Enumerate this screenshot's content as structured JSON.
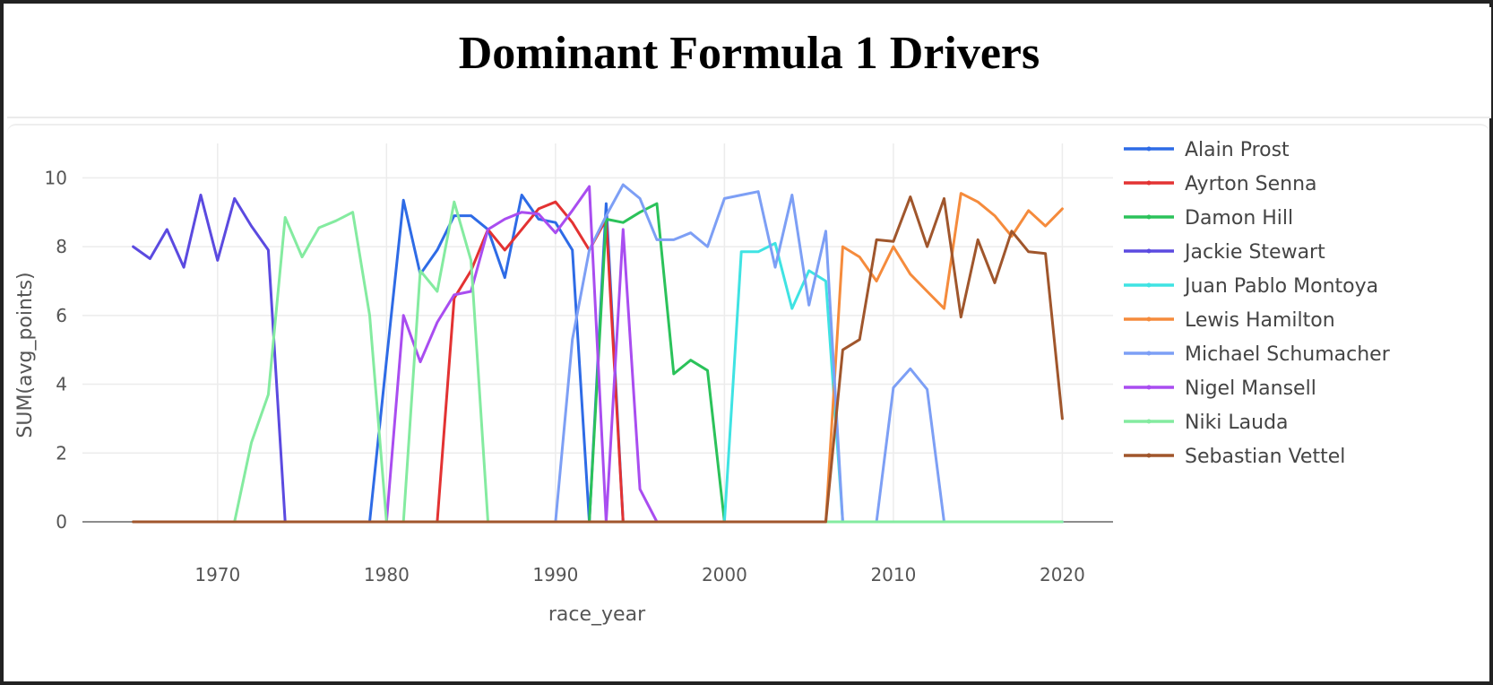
{
  "title": "Dominant Formula 1 Drivers",
  "chart_data": {
    "type": "line",
    "xlabel": "race_year",
    "ylabel": "SUM(avg_points)",
    "xlim": [
      1962,
      2023
    ],
    "ylim": [
      0,
      11
    ],
    "x_ticks": [
      1970,
      1980,
      1990,
      2000,
      2010,
      2020
    ],
    "y_ticks": [
      0,
      2,
      4,
      6,
      8,
      10
    ],
    "grid": true,
    "legend_position": "right",
    "x": [
      1965,
      1966,
      1967,
      1968,
      1969,
      1970,
      1971,
      1972,
      1973,
      1974,
      1975,
      1976,
      1977,
      1978,
      1979,
      1980,
      1981,
      1982,
      1983,
      1984,
      1985,
      1986,
      1987,
      1988,
      1989,
      1990,
      1991,
      1992,
      1993,
      1994,
      1995,
      1996,
      1997,
      1998,
      1999,
      2000,
      2001,
      2002,
      2003,
      2004,
      2005,
      2006,
      2007,
      2008,
      2009,
      2010,
      2011,
      2012,
      2013,
      2014,
      2015,
      2016,
      2017,
      2018,
      2019,
      2020
    ],
    "series": [
      {
        "name": "Alain Prost",
        "color": "#2e6be6",
        "values": [
          0,
          0,
          0,
          0,
          0,
          0,
          0,
          0,
          0,
          0,
          0,
          0,
          0,
          0,
          0,
          4.7,
          9.35,
          7.2,
          7.9,
          8.9,
          8.9,
          8.5,
          7.1,
          9.5,
          8.8,
          8.7,
          7.9,
          0,
          9.25,
          0,
          0,
          0,
          0,
          0,
          0,
          0,
          0,
          0,
          0,
          0,
          0,
          0,
          0,
          0,
          0,
          0,
          0,
          0,
          0,
          0,
          0,
          0,
          0,
          0,
          0,
          0
        ]
      },
      {
        "name": "Ayrton Senna",
        "color": "#e33232",
        "values": [
          0,
          0,
          0,
          0,
          0,
          0,
          0,
          0,
          0,
          0,
          0,
          0,
          0,
          0,
          0,
          0,
          0,
          0,
          0,
          6.5,
          7.3,
          8.5,
          7.9,
          8.5,
          9.1,
          9.3,
          8.7,
          7.9,
          8.8,
          0,
          0,
          0,
          0,
          0,
          0,
          0,
          0,
          0,
          0,
          0,
          0,
          0,
          0,
          0,
          0,
          0,
          0,
          0,
          0,
          0,
          0,
          0,
          0,
          0,
          0,
          0
        ]
      },
      {
        "name": "Damon Hill",
        "color": "#2bc25a",
        "values": [
          0,
          0,
          0,
          0,
          0,
          0,
          0,
          0,
          0,
          0,
          0,
          0,
          0,
          0,
          0,
          0,
          0,
          0,
          0,
          0,
          0,
          0,
          0,
          0,
          0,
          0,
          0,
          0,
          8.8,
          8.7,
          9.0,
          9.25,
          4.3,
          4.7,
          4.4,
          0,
          0,
          0,
          0,
          0,
          0,
          0,
          0,
          0,
          0,
          0,
          0,
          0,
          0,
          0,
          0,
          0,
          0,
          0,
          0,
          0
        ]
      },
      {
        "name": "Jackie Stewart",
        "color": "#5b4ae0",
        "values": [
          8.0,
          7.65,
          8.5,
          7.4,
          9.5,
          7.6,
          9.4,
          8.6,
          7.9,
          0,
          0,
          0,
          0,
          0,
          0,
          0,
          0,
          0,
          0,
          0,
          0,
          0,
          0,
          0,
          0,
          0,
          0,
          0,
          0,
          0,
          0,
          0,
          0,
          0,
          0,
          0,
          0,
          0,
          0,
          0,
          0,
          0,
          0,
          0,
          0,
          0,
          0,
          0,
          0,
          0,
          0,
          0,
          0,
          0,
          0,
          0
        ]
      },
      {
        "name": "Juan Pablo Montoya",
        "color": "#3fe3e3",
        "values": [
          0,
          0,
          0,
          0,
          0,
          0,
          0,
          0,
          0,
          0,
          0,
          0,
          0,
          0,
          0,
          0,
          0,
          0,
          0,
          0,
          0,
          0,
          0,
          0,
          0,
          0,
          0,
          0,
          0,
          0,
          0,
          0,
          0,
          0,
          0,
          0,
          7.85,
          7.85,
          8.1,
          6.2,
          7.3,
          7.0,
          0,
          0,
          0,
          0,
          0,
          0,
          0,
          0,
          0,
          0,
          0,
          0,
          0,
          0
        ]
      },
      {
        "name": "Lewis Hamilton",
        "color": "#f58b3c",
        "values": [
          0,
          0,
          0,
          0,
          0,
          0,
          0,
          0,
          0,
          0,
          0,
          0,
          0,
          0,
          0,
          0,
          0,
          0,
          0,
          0,
          0,
          0,
          0,
          0,
          0,
          0,
          0,
          0,
          0,
          0,
          0,
          0,
          0,
          0,
          0,
          0,
          0,
          0,
          0,
          0,
          0,
          0,
          8.0,
          7.7,
          7.0,
          8.0,
          7.2,
          6.7,
          6.2,
          9.55,
          9.3,
          8.9,
          8.3,
          9.05,
          8.6,
          9.1
        ]
      },
      {
        "name": "Michael Schumacher",
        "color": "#7d9ff5",
        "values": [
          0,
          0,
          0,
          0,
          0,
          0,
          0,
          0,
          0,
          0,
          0,
          0,
          0,
          0,
          0,
          0,
          0,
          0,
          0,
          0,
          0,
          0,
          0,
          0,
          0,
          0,
          5.3,
          7.9,
          8.9,
          9.8,
          9.4,
          8.2,
          8.2,
          8.4,
          8.0,
          9.4,
          9.5,
          9.6,
          7.4,
          9.5,
          6.3,
          8.45,
          0,
          0,
          0,
          3.9,
          4.45,
          3.85,
          0,
          0,
          0,
          0,
          0,
          0,
          0,
          0
        ]
      },
      {
        "name": "Nigel Mansell",
        "color": "#a94df0",
        "values": [
          0,
          0,
          0,
          0,
          0,
          0,
          0,
          0,
          0,
          0,
          0,
          0,
          0,
          0,
          0,
          0,
          6.0,
          4.65,
          5.8,
          6.6,
          6.7,
          8.5,
          8.8,
          9.0,
          8.95,
          8.4,
          9.05,
          9.75,
          0,
          8.5,
          0.95,
          0,
          0,
          0,
          0,
          0,
          0,
          0,
          0,
          0,
          0,
          0,
          0,
          0,
          0,
          0,
          0,
          0,
          0,
          0,
          0,
          0,
          0,
          0,
          0,
          0
        ]
      },
      {
        "name": "Niki Lauda",
        "color": "#84eba0",
        "values": [
          0,
          0,
          0,
          0,
          0,
          0,
          0,
          2.3,
          3.7,
          8.85,
          7.7,
          8.55,
          8.75,
          9.0,
          6.0,
          0,
          0,
          7.3,
          6.7,
          9.3,
          7.6,
          0,
          0,
          0,
          0,
          0,
          0,
          0,
          0,
          0,
          0,
          0,
          0,
          0,
          0,
          0,
          0,
          0,
          0,
          0,
          0,
          0,
          0,
          0,
          0,
          0,
          0,
          0,
          0,
          0,
          0,
          0,
          0,
          0,
          0,
          0
        ]
      },
      {
        "name": "Sebastian Vettel",
        "color": "#a0562c",
        "values": [
          0,
          0,
          0,
          0,
          0,
          0,
          0,
          0,
          0,
          0,
          0,
          0,
          0,
          0,
          0,
          0,
          0,
          0,
          0,
          0,
          0,
          0,
          0,
          0,
          0,
          0,
          0,
          0,
          0,
          0,
          0,
          0,
          0,
          0,
          0,
          0,
          0,
          0,
          0,
          0,
          0,
          0,
          5.0,
          5.3,
          8.2,
          8.15,
          9.45,
          8.0,
          9.4,
          5.95,
          8.2,
          6.95,
          8.45,
          7.85,
          7.8,
          3.0
        ]
      }
    ]
  }
}
